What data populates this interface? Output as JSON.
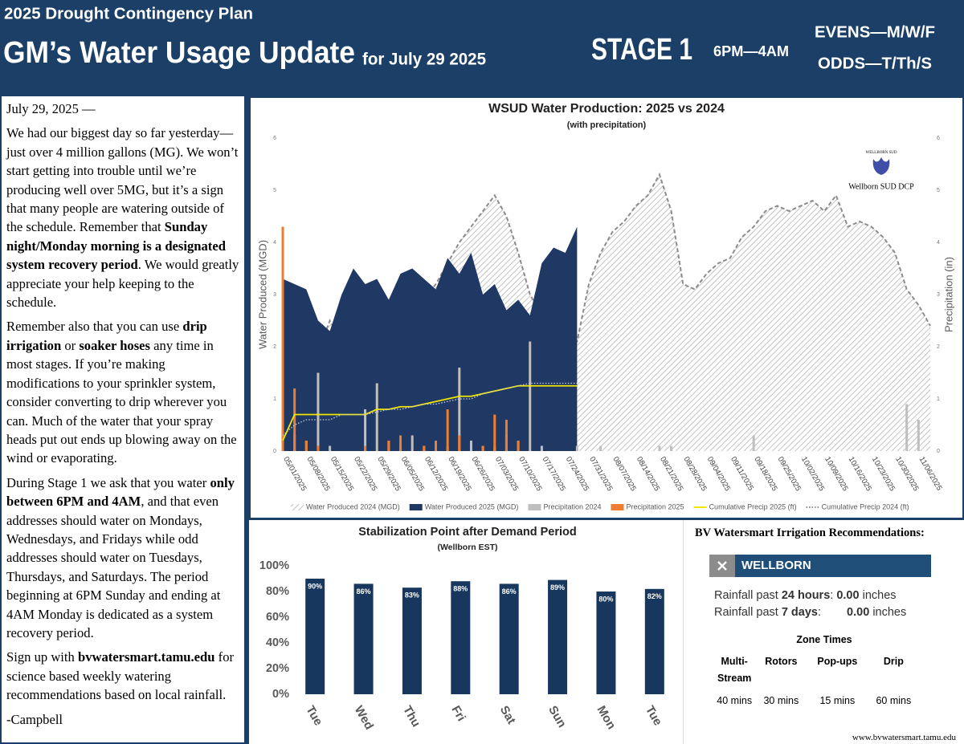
{
  "header": {
    "kicker": "2025 Drought Contingency Plan",
    "title": "GM’s Water Usage Update",
    "subtitle": "for July 29 2025",
    "stage": "STAGE 1",
    "hours": "6PM—4AM",
    "evens": "EVENS—M/W/F",
    "odds": "ODDS—T/Th/S"
  },
  "article": {
    "dateline": "July 29, 2025 —",
    "paragraphs": [
      [
        {
          "text": "We had our biggest day so far yesterday—just over 4 million gallons (MG). We won’t start getting into trouble until we’re producing well over 5MG, but it’s a sign that many people are watering outside of the schedule.  Remember that ",
          "bold": false
        },
        {
          "text": "Sunday night/Monday morning is a designated system recovery period",
          "bold": true
        },
        {
          "text": ". We would greatly appreciate your help keeping to the schedule.",
          "bold": false
        }
      ],
      [
        {
          "text": "Remember also that you can use ",
          "bold": false
        },
        {
          "text": "drip irrigation",
          "bold": true
        },
        {
          "text": " or ",
          "bold": false
        },
        {
          "text": "soaker hoses",
          "bold": true
        },
        {
          "text": " any time in most stages.  If you’re making modifications to your sprinkler system, consider converting to drip wherever you can. Much of the water that your spray heads put out ends up blowing away on the wind or evaporating.",
          "bold": false
        }
      ],
      [
        {
          "text": "During Stage 1 we ask that you water ",
          "bold": false
        },
        {
          "text": "only between 6PM and 4AM",
          "bold": true
        },
        {
          "text": ", and that even addresses should water on Mondays, Wednesdays, and Fridays while odd addresses should water on Tuesdays, Thursdays, and Saturdays.  The period beginning at 6PM Sunday and ending at 4AM Monday is dedicated as a system recovery period.",
          "bold": false
        }
      ],
      [
        {
          "text": "Sign up with ",
          "bold": false
        },
        {
          "text": "bvwatersmart.tamu.edu",
          "bold": true
        },
        {
          "text": " for science based weekly watering recommendations based on local rainfall.",
          "bold": false
        }
      ],
      [
        {
          "text": "-Campbell",
          "bold": false
        }
      ]
    ]
  },
  "chart_data": [
    {
      "type": "combo",
      "title": "WSUD Water Production: 2025 vs 2024",
      "subtitle": "(with precipitation)",
      "y_label": "Water Produced (MGD)",
      "y2_label": "Precipitation (in)",
      "logo": {
        "top": "WELLBORN SUD",
        "caption": "Wellborn SUD DCP"
      },
      "categories": [
        "05/01/2025",
        null,
        "05/08/2025",
        null,
        "05/15/2025",
        null,
        "05/22/2025",
        null,
        "05/29/2025",
        null,
        "06/05/2025",
        null,
        "06/12/2025",
        null,
        "06/19/2025",
        null,
        "06/26/2025",
        null,
        "07/03/2025",
        null,
        "07/10/2025",
        null,
        "07/17/2025",
        null,
        "07/24/2025",
        null,
        "07/31/2025",
        null,
        "08/07/2025",
        null,
        "08/14/2025",
        null,
        "08/21/2025",
        null,
        "08/28/2025",
        null,
        "09/04/2025",
        null,
        "09/11/2025",
        null,
        "09/18/2025",
        null,
        "09/25/2025",
        null,
        "10/02/2025",
        null,
        "10/09/2025",
        null,
        "10/16/2025",
        null,
        "10/23/2025",
        null,
        "10/30/2025",
        null,
        "11/06/2025",
        null
      ],
      "ylim": [
        0,
        6
      ],
      "yticks": [
        0,
        1,
        2,
        3,
        4,
        5,
        6
      ],
      "y2lim": [
        0,
        6
      ],
      "y2ticks": [
        0,
        1,
        2,
        3,
        4,
        5,
        6
      ],
      "series": [
        {
          "name": "Water Produced 2024 (MGD)",
          "type": "area",
          "hatch": true,
          "dash": "dashed",
          "color": "#8c8c8c",
          "values": [
            2.2,
            2.0,
            2.3,
            1.9,
            2.5,
            2.1,
            2.4,
            2.9,
            3.1,
            2.6,
            2.8,
            3.0,
            2.9,
            3.2,
            3.6,
            4.0,
            4.3,
            4.6,
            4.9,
            4.5,
            3.8,
            3.0,
            2.6,
            2.3,
            2.0,
            2.1,
            3.2,
            3.8,
            4.2,
            4.4,
            4.7,
            4.9,
            5.3,
            4.6,
            3.2,
            3.1,
            3.4,
            3.6,
            3.7,
            4.1,
            4.3,
            4.6,
            4.7,
            4.6,
            4.7,
            4.8,
            4.6,
            4.9,
            4.3,
            4.4,
            4.3,
            4.1,
            3.8,
            3.1,
            2.8,
            2.4
          ]
        },
        {
          "name": "Water Produced 2025 (MGD)",
          "type": "area",
          "hatch": false,
          "color": "#1f3864",
          "values": [
            3.3,
            3.2,
            3.1,
            2.5,
            2.3,
            3.0,
            3.5,
            3.2,
            3.3,
            2.9,
            3.4,
            3.5,
            3.3,
            3.1,
            3.7,
            3.4,
            3.8,
            3.0,
            3.2,
            2.7,
            2.9,
            2.6,
            3.6,
            3.9,
            3.8,
            4.3,
            null,
            null,
            null,
            null,
            null,
            null,
            null,
            null,
            null,
            null,
            null,
            null,
            null,
            null,
            null,
            null,
            null,
            null,
            null,
            null,
            null,
            null,
            null,
            null,
            null,
            null,
            null,
            null,
            null,
            null
          ]
        },
        {
          "name": "Precipitation 2024",
          "type": "bar",
          "axis": "y2",
          "color": "#bfbfbf",
          "values": [
            0.5,
            0.3,
            0.2,
            1.5,
            0.1,
            0,
            0,
            0.8,
            1.3,
            0.2,
            0.1,
            0.3,
            0.1,
            0.2,
            0.1,
            1.6,
            0.2,
            0.1,
            0.1,
            0.3,
            0.2,
            2.1,
            0.1,
            0,
            0,
            0.1,
            0,
            0.1,
            0,
            0,
            0,
            0,
            0.1,
            0.1,
            0,
            0,
            0,
            0,
            0,
            0,
            0.3,
            0,
            0,
            0,
            0,
            0,
            0,
            0,
            0,
            0,
            0,
            0,
            0,
            0.9,
            0.6,
            0
          ]
        },
        {
          "name": "Precipitation 2025",
          "type": "bar",
          "axis": "y2",
          "color": "#ed7d31",
          "values": [
            4.3,
            1.2,
            0.2,
            0.1,
            0,
            0,
            0,
            0.1,
            0,
            0.2,
            0.3,
            0,
            0.1,
            0.2,
            0.8,
            0.3,
            0,
            0.1,
            0.7,
            0.6,
            0.2,
            0,
            0,
            0,
            0,
            0,
            null,
            null,
            null,
            null,
            null,
            null,
            null,
            null,
            null,
            null,
            null,
            null,
            null,
            null,
            null,
            null,
            null,
            null,
            null,
            null,
            null,
            null,
            null,
            null,
            null,
            null,
            null,
            null,
            null,
            null
          ]
        },
        {
          "name": "Cumulative Precip 2025 (ft)",
          "type": "line",
          "axis": "y2",
          "color": "#f2e600",
          "values": [
            0.2,
            0.7,
            0.7,
            0.7,
            0.7,
            0.7,
            0.7,
            0.7,
            0.8,
            0.8,
            0.85,
            0.85,
            0.9,
            0.95,
            1.0,
            1.05,
            1.05,
            1.1,
            1.15,
            1.2,
            1.25,
            1.25,
            1.25,
            1.25,
            1.25,
            1.25,
            null,
            null,
            null,
            null,
            null,
            null,
            null,
            null,
            null,
            null,
            null,
            null,
            null,
            null,
            null,
            null,
            null,
            null,
            null,
            null,
            null,
            null,
            null,
            null,
            null,
            null,
            null,
            null,
            null,
            null
          ]
        },
        {
          "name": "Cumulative Precip 2024 (ft)",
          "type": "line",
          "axis": "y2",
          "dash": "dotted",
          "color": "#c8cdd6",
          "values": [
            0.3,
            0.5,
            0.6,
            0.6,
            0.6,
            0.7,
            0.7,
            0.7,
            0.75,
            0.8,
            0.8,
            0.85,
            0.9,
            0.9,
            0.95,
            1.0,
            1.0,
            1.1,
            1.15,
            1.2,
            1.25,
            1.3,
            1.3,
            1.3,
            1.3,
            1.3,
            null,
            null,
            null,
            null,
            null,
            null,
            null,
            null,
            null,
            null,
            null,
            null,
            null,
            null,
            null,
            null,
            null,
            null,
            null,
            null,
            null,
            null,
            null,
            null,
            null,
            null,
            null,
            null,
            null,
            null
          ]
        }
      ]
    },
    {
      "type": "bar",
      "title": "Stabilization Point after Demand Period",
      "subtitle": "(Wellborn EST)",
      "categories": [
        "Tue",
        "Wed",
        "Thu",
        "Fri",
        "Sat",
        "Sun",
        "Mon",
        "Tue"
      ],
      "values": [
        90,
        86,
        83,
        88,
        86,
        89,
        80,
        82
      ],
      "value_labels": [
        "90%",
        "86%",
        "83%",
        "88%",
        "86%",
        "89%",
        "80%",
        "82%"
      ],
      "color": "#17375e",
      "ylim": [
        0,
        100
      ],
      "yticks": [
        {
          "value": 0,
          "label": "0%"
        },
        {
          "value": 20,
          "label": "20%"
        },
        {
          "value": 40,
          "label": "40%"
        },
        {
          "value": 60,
          "label": "60%"
        },
        {
          "value": 80,
          "label": "80%"
        },
        {
          "value": 100,
          "label": "100%"
        }
      ]
    }
  ],
  "recommendations": {
    "title": "BV Watersmart Irrigation Recommendations:",
    "location": "WELLBORN",
    "rainfall": [
      {
        "label": "Rainfall past",
        "period": "24 hours",
        "value": "0.00",
        "unit": "inches"
      },
      {
        "label": "Rainfall past",
        "period": "7 days",
        "value": "0.00",
        "unit": "inches"
      }
    ],
    "zone_title": "Zone Times",
    "zones": [
      "Multi-Stream",
      "Rotors",
      "Pop-ups",
      "Drip"
    ],
    "times": [
      "40 mins",
      "30 mins",
      "15 mins",
      "60 mins"
    ],
    "url": "www.bvwatersmart.tamu.edu"
  }
}
